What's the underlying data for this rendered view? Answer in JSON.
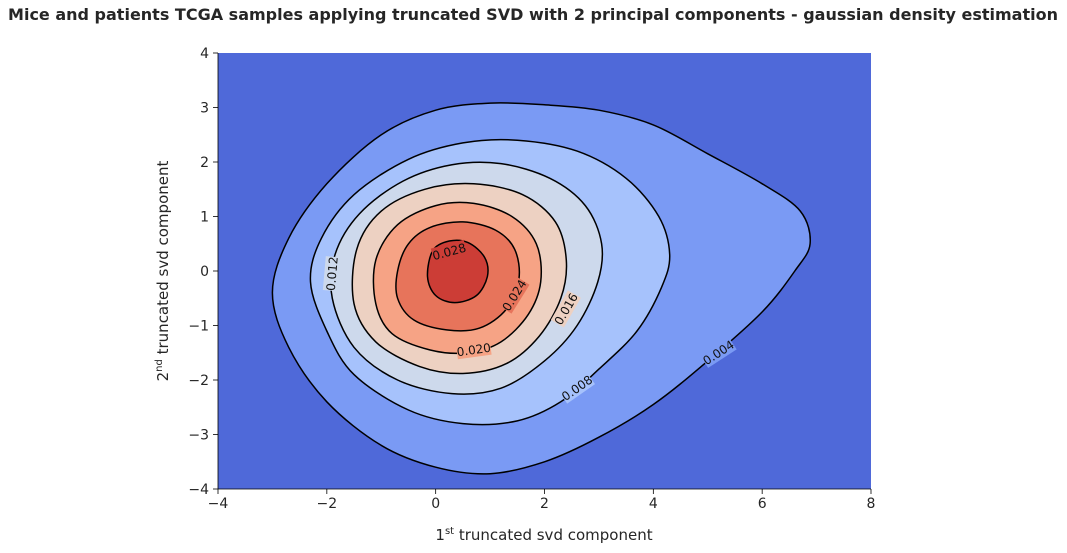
{
  "chart_data": {
    "type": "contour",
    "title": "Mice and patients TCGA samples applying truncated SVD with 2 principal components - gaussian density estimation",
    "xlabel_main": "1",
    "xlabel_sup": "st",
    "xlabel_rest": " truncated svd component",
    "ylabel_main": "2",
    "ylabel_sup": "nd",
    "ylabel_rest": " truncated svd component",
    "xlim": [
      -4,
      8
    ],
    "ylim": [
      -4,
      4
    ],
    "xticks": [
      -4,
      -2,
      0,
      2,
      4,
      6,
      8
    ],
    "yticks": [
      -4,
      -3,
      -2,
      -1,
      0,
      1,
      2,
      3,
      4
    ],
    "xtick_labels": [
      "−4",
      "−2",
      "0",
      "2",
      "4",
      "6",
      "8"
    ],
    "ytick_labels": [
      "−4",
      "−3",
      "−2",
      "−1",
      "0",
      "1",
      "2",
      "3",
      "4"
    ],
    "colormap": "coolwarm",
    "background_color": "#4f69d9",
    "levels": [
      {
        "value": 0.004,
        "label": "0.004",
        "fill": "#7a9af4",
        "contour": [
          [
            -3,
            -0.4
          ],
          [
            -2.7,
            -1.4
          ],
          [
            -2,
            -2.4
          ],
          [
            -1,
            -3.2
          ],
          [
            0,
            -3.6
          ],
          [
            1,
            -3.72
          ],
          [
            2,
            -3.5
          ],
          [
            3,
            -3.05
          ],
          [
            4,
            -2.45
          ],
          [
            5,
            -1.65
          ],
          [
            6,
            -0.75
          ],
          [
            6.6,
            0
          ],
          [
            6.88,
            0.5
          ],
          [
            6.7,
            1.1
          ],
          [
            6,
            1.6
          ],
          [
            5,
            2.15
          ],
          [
            4,
            2.68
          ],
          [
            3,
            2.95
          ],
          [
            2,
            3.05
          ],
          [
            1,
            3.08
          ],
          [
            0,
            2.95
          ],
          [
            -1,
            2.5
          ],
          [
            -2,
            1.6
          ],
          [
            -2.7,
            0.6
          ]
        ]
      },
      {
        "value": 0.008,
        "label": "0.008",
        "fill": "#a6c2fc",
        "contour": [
          [
            -2.3,
            -0.2
          ],
          [
            -2,
            -1.1
          ],
          [
            -1.5,
            -1.9
          ],
          [
            -0.5,
            -2.55
          ],
          [
            0.5,
            -2.8
          ],
          [
            1.5,
            -2.75
          ],
          [
            2.3,
            -2.4
          ],
          [
            3,
            -1.8
          ],
          [
            3.7,
            -1.1
          ],
          [
            4.15,
            -0.3
          ],
          [
            4.3,
            0.3
          ],
          [
            4.1,
            1
          ],
          [
            3.5,
            1.7
          ],
          [
            2.6,
            2.2
          ],
          [
            1.5,
            2.4
          ],
          [
            0.5,
            2.35
          ],
          [
            -0.5,
            2.05
          ],
          [
            -1.5,
            1.4
          ],
          [
            -2.1,
            0.6
          ]
        ]
      },
      {
        "value": 0.012,
        "label": "0.012",
        "fill": "#cdd9ec",
        "contour": [
          [
            -1.9,
            -0.5
          ],
          [
            -1.5,
            -1.4
          ],
          [
            -0.7,
            -2
          ],
          [
            0.3,
            -2.25
          ],
          [
            1.2,
            -2.15
          ],
          [
            2,
            -1.65
          ],
          [
            2.6,
            -1
          ],
          [
            2.98,
            -0.2
          ],
          [
            3.05,
            0.5
          ],
          [
            2.75,
            1.2
          ],
          [
            2.1,
            1.7
          ],
          [
            1.2,
            1.97
          ],
          [
            0.3,
            1.95
          ],
          [
            -0.6,
            1.65
          ],
          [
            -1.4,
            1.05
          ],
          [
            -1.85,
            0.3
          ]
        ]
      },
      {
        "value": 0.016,
        "label": "0.016",
        "fill": "#edd1c2",
        "contour": [
          [
            -1.5,
            -0.6
          ],
          [
            -1.1,
            -1.3
          ],
          [
            -0.3,
            -1.75
          ],
          [
            0.5,
            -1.88
          ],
          [
            1.3,
            -1.7
          ],
          [
            1.9,
            -1.2
          ],
          [
            2.3,
            -0.5
          ],
          [
            2.4,
            0.2
          ],
          [
            2.2,
            0.9
          ],
          [
            1.6,
            1.4
          ],
          [
            0.7,
            1.6
          ],
          [
            -0.2,
            1.5
          ],
          [
            -1,
            1.1
          ],
          [
            -1.45,
            0.4
          ]
        ]
      },
      {
        "value": 0.02,
        "label": "0.020",
        "fill": "#f6a385",
        "contour": [
          [
            -1.1,
            -0.6
          ],
          [
            -0.8,
            -1.15
          ],
          [
            -0.1,
            -1.45
          ],
          [
            0.6,
            -1.5
          ],
          [
            1.2,
            -1.3
          ],
          [
            1.7,
            -0.8
          ],
          [
            1.93,
            -0.2
          ],
          [
            1.85,
            0.5
          ],
          [
            1.4,
            1
          ],
          [
            0.7,
            1.24
          ],
          [
            0,
            1.2
          ],
          [
            -0.7,
            0.85
          ],
          [
            -1.1,
            0.2
          ]
        ]
      },
      {
        "value": 0.024,
        "label": "0.024",
        "fill": "#e7745b",
        "contour": [
          [
            -0.7,
            -0.5
          ],
          [
            -0.4,
            -0.9
          ],
          [
            0.2,
            -1.08
          ],
          [
            0.8,
            -1.05
          ],
          [
            1.3,
            -0.7
          ],
          [
            1.53,
            -0.15
          ],
          [
            1.45,
            0.4
          ],
          [
            1.1,
            0.75
          ],
          [
            0.5,
            0.9
          ],
          [
            -0.1,
            0.8
          ],
          [
            -0.5,
            0.5
          ],
          [
            -0.7,
            0
          ]
        ]
      },
      {
        "value": 0.028,
        "label": "0.028",
        "fill": "#cc3d36",
        "contour": [
          [
            -0.15,
            -0.1
          ],
          [
            0,
            -0.45
          ],
          [
            0.35,
            -0.58
          ],
          [
            0.75,
            -0.45
          ],
          [
            0.95,
            -0.1
          ],
          [
            0.9,
            0.25
          ],
          [
            0.6,
            0.52
          ],
          [
            0.25,
            0.55
          ],
          [
            -0.05,
            0.38
          ]
        ]
      }
    ],
    "contour_labels": [
      {
        "text": "0.004",
        "x": 5.2,
        "y": -1.5,
        "angle": -33
      },
      {
        "text": "0.008",
        "x": 2.6,
        "y": -2.15,
        "angle": -35
      },
      {
        "text": "0.012",
        "x": -1.9,
        "y": -0.05,
        "angle": -85
      },
      {
        "text": "0.016",
        "x": 2.4,
        "y": -0.7,
        "angle": -60
      },
      {
        "text": "0.020",
        "x": 0.7,
        "y": -1.45,
        "angle": -8
      },
      {
        "text": "0.024",
        "x": 1.45,
        "y": -0.45,
        "angle": -58
      },
      {
        "text": "0.028",
        "x": 0.25,
        "y": 0.35,
        "angle": -15
      }
    ]
  }
}
